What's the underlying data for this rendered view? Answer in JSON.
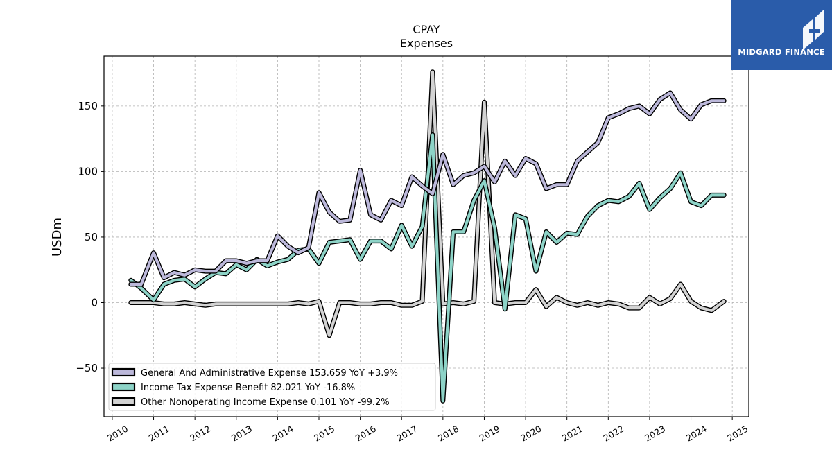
{
  "brand": {
    "name": "MIDGARD FINANCE",
    "color": "#2a5caa",
    "icon": "midgard-logo-icon"
  },
  "chart_data": {
    "type": "line",
    "title": "CPAY",
    "subtitle": "Expenses",
    "xlabel": "",
    "ylabel": "USDm",
    "xlim": [
      2009.8,
      2025.4
    ],
    "ylim": [
      -87,
      188
    ],
    "yticks": [
      -50,
      0,
      50,
      100,
      150
    ],
    "xticks": [
      2010,
      2011,
      2012,
      2013,
      2014,
      2015,
      2016,
      2017,
      2018,
      2019,
      2020,
      2021,
      2022,
      2023,
      2024,
      2025
    ],
    "grid": true,
    "legend_position": "lower-left",
    "legend_labels": [
      "General And Administrative Expense  153.659 YoY +3.9%",
      "Income Tax Expense Benefit  82.021 YoY -16.8%",
      "Other Nonoperating Income Expense  0.101 YoY -99.2%"
    ],
    "series": [
      {
        "name": "General And Administrative Expense",
        "color": "#bcb8da",
        "points": [
          [
            2010.45,
            14
          ],
          [
            2010.7,
            14
          ],
          [
            2011.0,
            38
          ],
          [
            2011.25,
            19
          ],
          [
            2011.5,
            23
          ],
          [
            2011.75,
            21
          ],
          [
            2012.0,
            25
          ],
          [
            2012.25,
            24
          ],
          [
            2012.5,
            24
          ],
          [
            2012.75,
            32
          ],
          [
            2013.0,
            32
          ],
          [
            2013.25,
            30
          ],
          [
            2013.5,
            32
          ],
          [
            2013.75,
            32
          ],
          [
            2014.0,
            51
          ],
          [
            2014.25,
            43
          ],
          [
            2014.5,
            38
          ],
          [
            2014.75,
            42
          ],
          [
            2015.0,
            84
          ],
          [
            2015.25,
            69
          ],
          [
            2015.5,
            62
          ],
          [
            2015.75,
            63
          ],
          [
            2016.0,
            101
          ],
          [
            2016.25,
            67
          ],
          [
            2016.5,
            63
          ],
          [
            2016.75,
            78
          ],
          [
            2017.0,
            74
          ],
          [
            2017.25,
            96
          ],
          [
            2017.5,
            89
          ],
          [
            2017.75,
            83
          ],
          [
            2018.0,
            113
          ],
          [
            2018.25,
            90
          ],
          [
            2018.5,
            97
          ],
          [
            2018.75,
            99
          ],
          [
            2019.0,
            104
          ],
          [
            2019.25,
            92
          ],
          [
            2019.5,
            108
          ],
          [
            2019.75,
            97
          ],
          [
            2020.0,
            110
          ],
          [
            2020.25,
            106
          ],
          [
            2020.5,
            87
          ],
          [
            2020.75,
            90
          ],
          [
            2021.0,
            90
          ],
          [
            2021.25,
            108
          ],
          [
            2021.5,
            115
          ],
          [
            2021.75,
            122
          ],
          [
            2022.0,
            141
          ],
          [
            2022.25,
            144
          ],
          [
            2022.5,
            148
          ],
          [
            2022.75,
            150
          ],
          [
            2023.0,
            144
          ],
          [
            2023.25,
            155
          ],
          [
            2023.5,
            160
          ],
          [
            2023.75,
            147
          ],
          [
            2024.0,
            140
          ],
          [
            2024.25,
            151
          ],
          [
            2024.5,
            154
          ],
          [
            2024.8,
            154
          ]
        ]
      },
      {
        "name": "Income Tax Expense Benefit",
        "color": "#8dd3c7",
        "points": [
          [
            2010.45,
            17
          ],
          [
            2010.7,
            11
          ],
          [
            2011.0,
            2
          ],
          [
            2011.25,
            14
          ],
          [
            2011.5,
            17
          ],
          [
            2011.75,
            18
          ],
          [
            2012.0,
            12
          ],
          [
            2012.25,
            18
          ],
          [
            2012.5,
            23
          ],
          [
            2012.75,
            22
          ],
          [
            2013.0,
            29
          ],
          [
            2013.25,
            25
          ],
          [
            2013.5,
            33
          ],
          [
            2013.75,
            28
          ],
          [
            2014.0,
            31
          ],
          [
            2014.25,
            33
          ],
          [
            2014.5,
            40
          ],
          [
            2014.75,
            41
          ],
          [
            2015.0,
            30
          ],
          [
            2015.25,
            46
          ],
          [
            2015.5,
            47
          ],
          [
            2015.75,
            48
          ],
          [
            2016.0,
            33
          ],
          [
            2016.25,
            47
          ],
          [
            2016.5,
            47
          ],
          [
            2016.75,
            41
          ],
          [
            2017.0,
            59
          ],
          [
            2017.25,
            43
          ],
          [
            2017.5,
            58
          ],
          [
            2017.75,
            128
          ],
          [
            2018.0,
            -75
          ],
          [
            2018.25,
            54
          ],
          [
            2018.5,
            54
          ],
          [
            2018.75,
            78
          ],
          [
            2019.0,
            93
          ],
          [
            2019.25,
            57
          ],
          [
            2019.5,
            -5
          ],
          [
            2019.75,
            67
          ],
          [
            2020.0,
            64
          ],
          [
            2020.25,
            24
          ],
          [
            2020.5,
            54
          ],
          [
            2020.75,
            46
          ],
          [
            2021.0,
            53
          ],
          [
            2021.25,
            52
          ],
          [
            2021.5,
            66
          ],
          [
            2021.75,
            74
          ],
          [
            2022.0,
            78
          ],
          [
            2022.25,
            77
          ],
          [
            2022.5,
            81
          ],
          [
            2022.75,
            91
          ],
          [
            2023.0,
            71
          ],
          [
            2023.25,
            80
          ],
          [
            2023.5,
            87
          ],
          [
            2023.75,
            99
          ],
          [
            2024.0,
            77
          ],
          [
            2024.25,
            74
          ],
          [
            2024.5,
            82
          ],
          [
            2024.8,
            82
          ]
        ]
      },
      {
        "name": "Other Nonoperating Income Expense",
        "color": "#d3d3d3",
        "points": [
          [
            2010.45,
            0
          ],
          [
            2010.7,
            0
          ],
          [
            2011.0,
            0
          ],
          [
            2011.25,
            -1
          ],
          [
            2011.5,
            -1
          ],
          [
            2011.75,
            0
          ],
          [
            2012.0,
            -1
          ],
          [
            2012.25,
            -2
          ],
          [
            2012.5,
            -1
          ],
          [
            2012.75,
            -1
          ],
          [
            2013.0,
            -1
          ],
          [
            2013.25,
            -1
          ],
          [
            2013.5,
            -1
          ],
          [
            2013.75,
            -1
          ],
          [
            2014.0,
            -1
          ],
          [
            2014.25,
            -1
          ],
          [
            2014.5,
            0
          ],
          [
            2014.75,
            -1
          ],
          [
            2015.0,
            1
          ],
          [
            2015.25,
            -25
          ],
          [
            2015.5,
            0
          ],
          [
            2015.75,
            0
          ],
          [
            2016.0,
            -1
          ],
          [
            2016.25,
            -1
          ],
          [
            2016.5,
            0
          ],
          [
            2016.75,
            0
          ],
          [
            2017.0,
            -2
          ],
          [
            2017.25,
            -2
          ],
          [
            2017.5,
            1
          ],
          [
            2017.75,
            176
          ],
          [
            2018.0,
            -1
          ],
          [
            2018.25,
            0
          ],
          [
            2018.5,
            -1
          ],
          [
            2018.75,
            1
          ],
          [
            2019.0,
            153
          ],
          [
            2019.25,
            0
          ],
          [
            2019.5,
            -1
          ],
          [
            2019.75,
            0
          ],
          [
            2020.0,
            0
          ],
          [
            2020.25,
            10
          ],
          [
            2020.5,
            -3
          ],
          [
            2020.75,
            4
          ],
          [
            2021.0,
            0
          ],
          [
            2021.25,
            -2
          ],
          [
            2021.5,
            0
          ],
          [
            2021.75,
            -2
          ],
          [
            2022.0,
            0
          ],
          [
            2022.25,
            -1
          ],
          [
            2022.5,
            -4
          ],
          [
            2022.75,
            -4
          ],
          [
            2023.0,
            4
          ],
          [
            2023.25,
            -1
          ],
          [
            2023.5,
            3
          ],
          [
            2023.75,
            14
          ],
          [
            2024.0,
            1
          ],
          [
            2024.25,
            -4
          ],
          [
            2024.5,
            -6
          ],
          [
            2024.8,
            1
          ]
        ]
      }
    ]
  }
}
